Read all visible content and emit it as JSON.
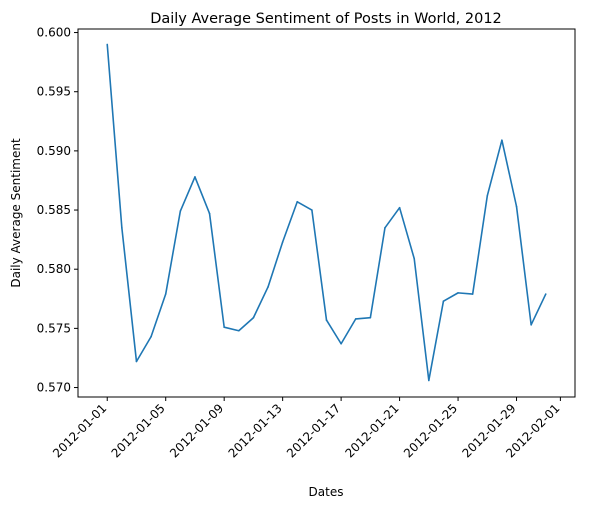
{
  "chart_data": {
    "type": "line",
    "title": "Daily Average Sentiment of Posts in World, 2012",
    "xlabel": "Dates",
    "ylabel": "Daily Average Sentiment",
    "x": [
      "2012-01-01",
      "2012-01-02",
      "2012-01-03",
      "2012-01-04",
      "2012-01-05",
      "2012-01-06",
      "2012-01-07",
      "2012-01-08",
      "2012-01-09",
      "2012-01-10",
      "2012-01-11",
      "2012-01-12",
      "2012-01-13",
      "2012-01-14",
      "2012-01-15",
      "2012-01-16",
      "2012-01-17",
      "2012-01-18",
      "2012-01-19",
      "2012-01-20",
      "2012-01-21",
      "2012-01-22",
      "2012-01-23",
      "2012-01-24",
      "2012-01-25",
      "2012-01-26",
      "2012-01-27",
      "2012-01-28",
      "2012-01-29",
      "2012-01-30",
      "2012-01-31"
    ],
    "series": [
      {
        "values": [
          0.599,
          0.5835,
          0.5722,
          0.5743,
          0.5779,
          0.5849,
          0.5878,
          0.5847,
          0.5751,
          0.5748,
          0.5759,
          0.5785,
          0.5823,
          0.5857,
          0.585,
          0.5757,
          0.5737,
          0.5758,
          0.5759,
          0.5835,
          0.5852,
          0.5809,
          0.5706,
          0.5773,
          0.578,
          0.5779,
          0.5862,
          0.5909,
          0.5853,
          0.5753,
          0.5779
        ],
        "color": "#1f77b4"
      }
    ],
    "xlim": [
      "2011-12-30",
      "2012-02-02"
    ],
    "ylim": [
      0.5692,
      0.6003
    ],
    "x_ticks": [
      "2012-01-01",
      "2012-01-05",
      "2012-01-09",
      "2012-01-13",
      "2012-01-17",
      "2012-01-21",
      "2012-01-25",
      "2012-01-29",
      "2012-02-01"
    ],
    "y_ticks": [
      "0.570",
      "0.575",
      "0.580",
      "0.585",
      "0.590",
      "0.595",
      "0.600"
    ],
    "grid": false
  }
}
